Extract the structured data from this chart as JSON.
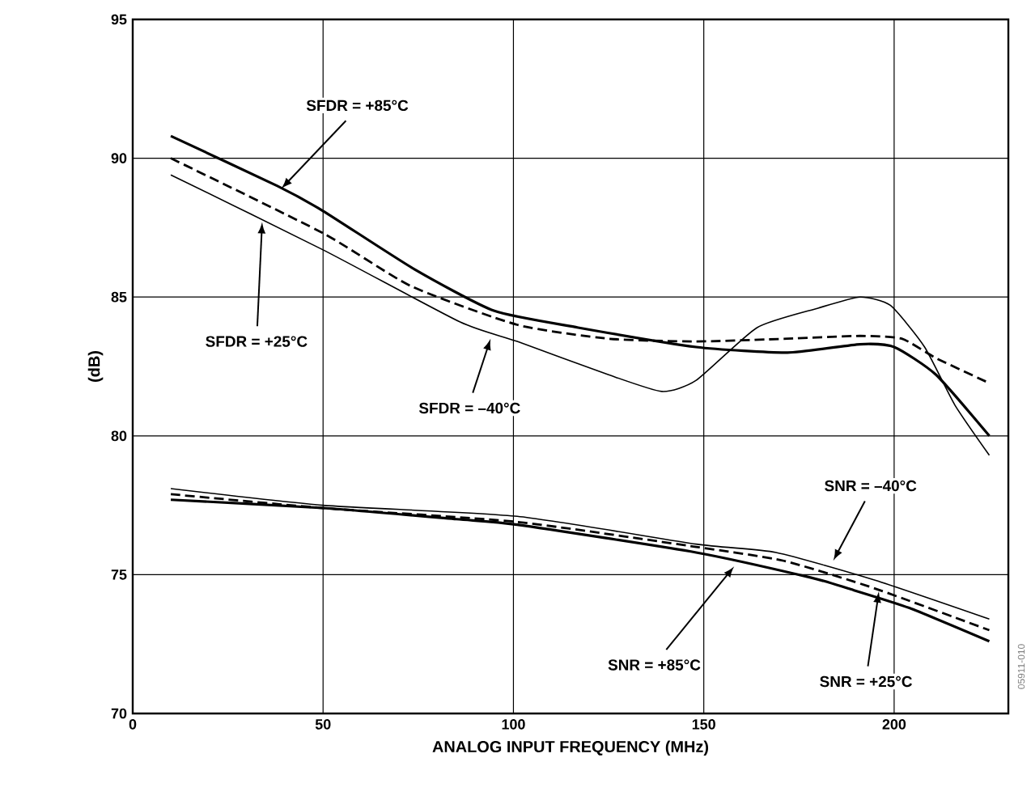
{
  "chart_data": {
    "type": "line",
    "xlabel": "ANALOG INPUT FREQUENCY (MHz)",
    "ylabel": "(dB)",
    "xlim": [
      0,
      230
    ],
    "xticks": [
      0,
      50,
      100,
      150,
      200
    ],
    "ylim": [
      70,
      95
    ],
    "yticks": [
      70,
      75,
      80,
      85,
      90,
      95
    ],
    "grid": true,
    "marker": "none",
    "series": [
      {
        "color": "#000000",
        "line_style": "solid",
        "x": [
          10,
          38,
          50,
          74,
          95,
          117,
          148,
          172,
          191,
          200,
          211,
          225
        ],
        "values": [
          90.8,
          89.0,
          88.1,
          86.0,
          84.5,
          83.9,
          83.2,
          83.0,
          83.3,
          83.2,
          82.2,
          80.0
        ]
      },
      {
        "color": "#000000",
        "line_style": "dashed",
        "x": [
          10,
          50,
          73,
          101,
          125,
          148,
          172,
          191,
          202,
          211,
          225
        ],
        "values": [
          90.0,
          87.3,
          85.4,
          84.0,
          83.5,
          83.4,
          83.5,
          83.6,
          83.5,
          82.8,
          81.9
        ]
      },
      {
        "color": "#000000",
        "line_style": "solid",
        "x": [
          10,
          50,
          86,
          101,
          125,
          139,
          148,
          164,
          180,
          191,
          199,
          208,
          216,
          225
        ],
        "values": [
          89.4,
          86.7,
          84.1,
          83.4,
          82.2,
          81.6,
          82.0,
          83.9,
          84.6,
          85.0,
          84.7,
          83.2,
          81.1,
          79.3
        ]
      },
      {
        "color": "#000000",
        "line_style": "solid",
        "x": [
          10,
          50,
          85,
          101,
          148,
          178,
          188,
          204,
          225
        ],
        "values": [
          77.7,
          77.4,
          77.0,
          76.8,
          75.8,
          74.9,
          74.5,
          73.8,
          72.6
        ]
      },
      {
        "color": "#000000",
        "line_style": "dashed",
        "x": [
          10,
          50,
          101,
          148,
          171,
          195,
          225
        ],
        "values": [
          77.9,
          77.4,
          76.9,
          76.0,
          75.5,
          74.5,
          73.0
        ]
      },
      {
        "color": "#000000",
        "line_style": "solid",
        "x": [
          10,
          50,
          101,
          148,
          169,
          195,
          225
        ],
        "values": [
          78.1,
          77.5,
          77.1,
          76.1,
          75.8,
          74.8,
          73.4
        ]
      }
    ],
    "annotations": [
      {
        "text": "SFDR = +85°C",
        "x": 39,
        "y": 88.9
      },
      {
        "text": "SFDR = +25°C",
        "x": 34,
        "y": 87.7
      },
      {
        "text": "SFDR = –40°C",
        "x": 94,
        "y": 83.5
      },
      {
        "text": "SNR = –40°C",
        "x": 184,
        "y": 75.5
      },
      {
        "text": "SNR = +85°C",
        "x": 158,
        "y": 75.3
      },
      {
        "text": "SNR = +25°C",
        "x": 196,
        "y": 74.4
      },
      "05911-010"
    ]
  }
}
